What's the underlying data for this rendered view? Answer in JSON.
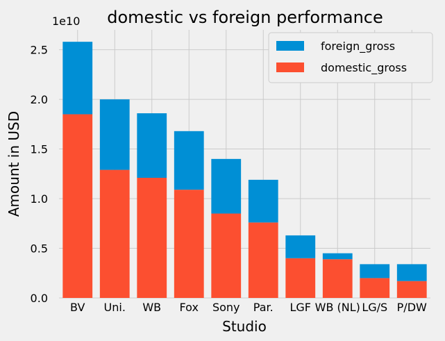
{
  "chart_data": {
    "type": "bar",
    "stacked": true,
    "title": "domestic vs foreign performance",
    "xlabel": "Studio",
    "ylabel": "Amount in USD",
    "offset_label": "1e10",
    "y_scale": 10000000000,
    "categories": [
      "BV",
      "Uni.",
      "WB",
      "Fox",
      "Sony",
      "Par.",
      "LGF",
      "WB (NL)",
      "LG/S",
      "P/DW"
    ],
    "series": [
      {
        "name": "domestic_gross",
        "color": "#fc4f30",
        "values": [
          18500000000,
          12900000000,
          12100000000,
          10900000000,
          8500000000,
          7600000000,
          4000000000,
          3900000000,
          2000000000,
          1700000000
        ]
      },
      {
        "name": "foreign_gross",
        "color": "#008fd5",
        "values": [
          7300000000,
          7100000000,
          6500000000,
          5900000000,
          5500000000,
          4300000000,
          2300000000,
          600000000,
          1400000000,
          1700000000
        ]
      }
    ],
    "legend_order": [
      "foreign_gross",
      "domestic_gross"
    ],
    "yticks": [
      "0.0",
      "0.5",
      "1.0",
      "1.5",
      "2.0",
      "2.5"
    ],
    "ylim": [
      0,
      27000000000
    ],
    "grid": true,
    "legend_position": "top-right"
  }
}
